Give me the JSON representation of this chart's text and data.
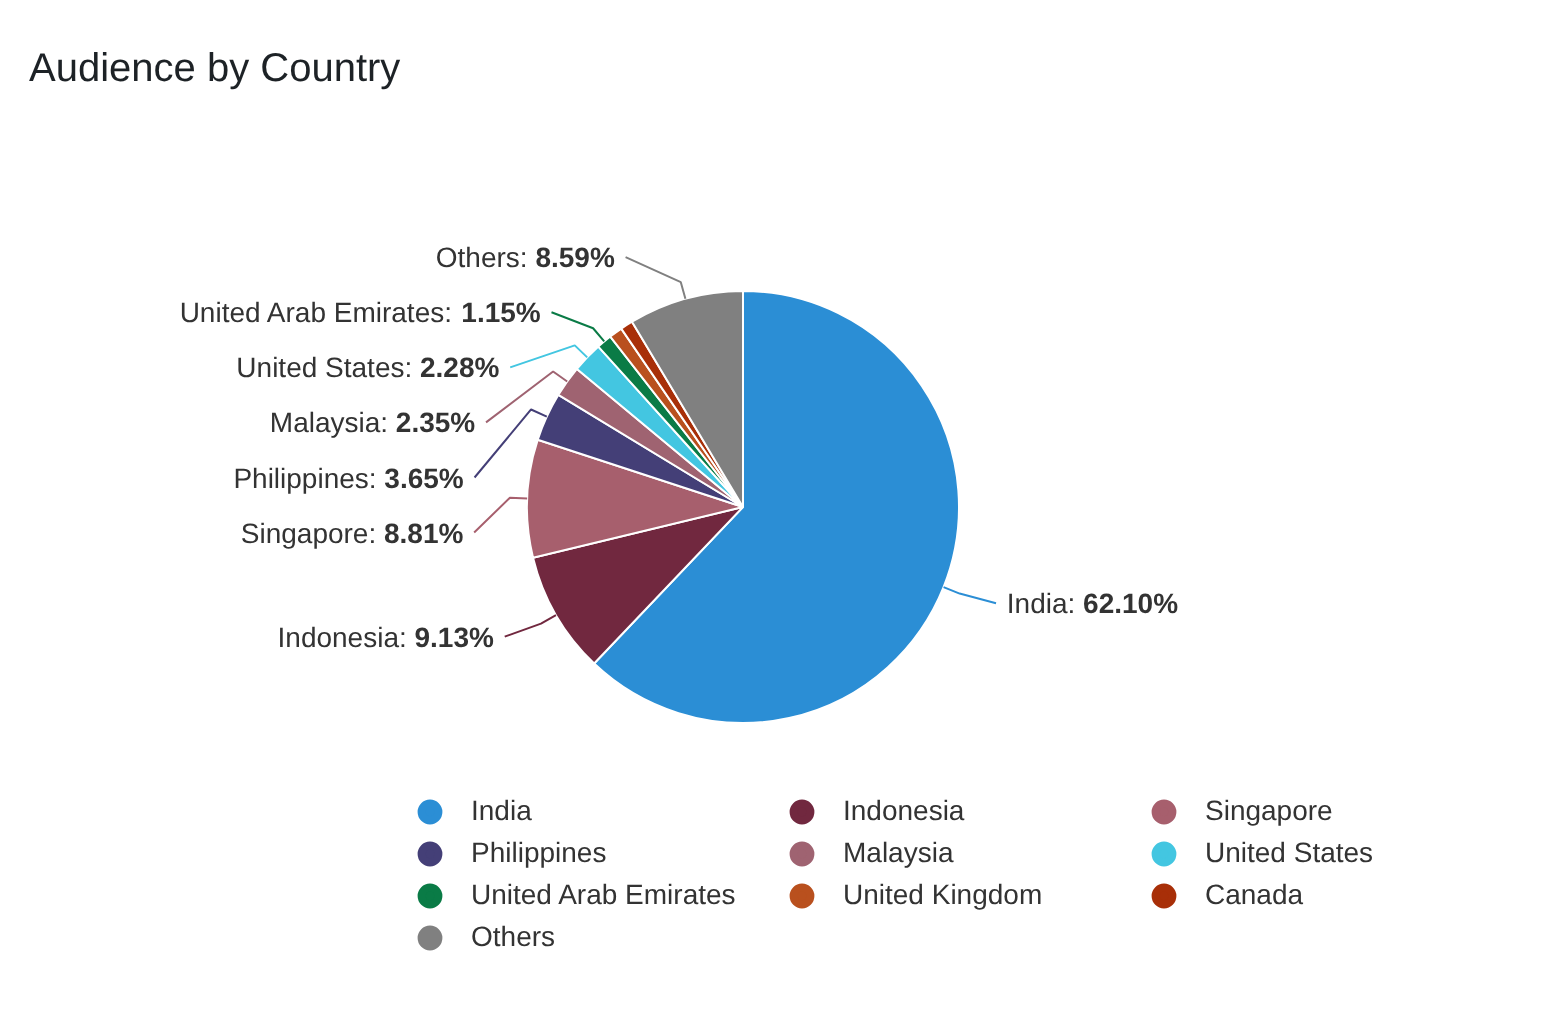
{
  "chart_data": {
    "type": "pie",
    "title": "Audience by Country",
    "categories": [
      "India",
      "Indonesia",
      "Singapore",
      "Philippines",
      "Malaysia",
      "United States",
      "United Arab Emirates",
      "United Kingdom",
      "Canada",
      "Others"
    ],
    "values": [
      62.1,
      9.13,
      8.81,
      3.65,
      2.35,
      2.28,
      1.15,
      1.0,
      0.94,
      8.59
    ],
    "colors": [
      "#2b8ed5",
      "#71283f",
      "#a75f6d",
      "#443f77",
      "#9f6371",
      "#43c6e1",
      "#0a7b46",
      "#b9501e",
      "#a82f08",
      "#808080"
    ],
    "value_labels": [
      "India: 62.10%",
      "Indonesia: 9.13%",
      "Singapore: 8.81%",
      "Philippines: 3.65%",
      "Malaysia: 2.35%",
      "United States: 2.28%",
      "United Arab Emirates: 1.15%",
      null,
      null,
      "Others: 8.59%"
    ],
    "legend": "bottom"
  }
}
